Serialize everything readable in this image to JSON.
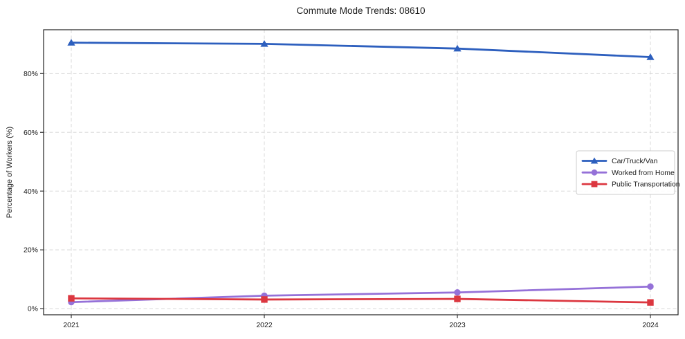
{
  "chart_data": {
    "type": "line",
    "title": "Commute Mode Trends: 08610",
    "xlabel": "",
    "ylabel": "Percentage of Workers (%)",
    "x": [
      "2021",
      "2022",
      "2023",
      "2024"
    ],
    "series": [
      {
        "name": "Car/Truck/Van",
        "color": "#2d5fbe",
        "marker": "triangle",
        "values": [
          90.5,
          90.1,
          88.5,
          85.6
        ]
      },
      {
        "name": "Worked from Home",
        "color": "#9571d8",
        "marker": "circle",
        "values": [
          2.2,
          4.4,
          5.5,
          7.5
        ]
      },
      {
        "name": "Public Transportation",
        "color": "#dc3740",
        "marker": "square",
        "values": [
          3.5,
          3.1,
          3.3,
          2.1
        ]
      }
    ],
    "ylim": [
      -2.1,
      94.9
    ],
    "yticks": [
      0,
      20,
      40,
      60,
      80
    ],
    "ytick_labels": [
      "0%",
      "20%",
      "40%",
      "60%",
      "80%"
    ],
    "grid": true,
    "legend_position": "center-right",
    "colors": {
      "grid": "#d4d4d4",
      "axis": "#222222",
      "tick_text": "#1a1a1a",
      "legend_border": "#cccccc",
      "legend_bg": "#ffffff"
    }
  }
}
